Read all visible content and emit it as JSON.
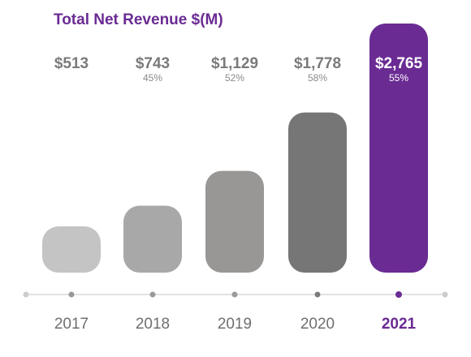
{
  "title": "Total Net Revenue $(M)",
  "colors": {
    "accent": "#6a2b93",
    "bar_greys": [
      "#c4c4c4",
      "#a8a8a8",
      "#999796",
      "#767676"
    ],
    "value_text_grey": "#7a7a7a",
    "growth_text_grey": "#8a8a8a",
    "axis_line": "#d9d9d9",
    "axis_dot_end": "#cccccc",
    "axis_dot_mid": "#999999",
    "axis_dot_dark": "#7a7a7a"
  },
  "chart_data": {
    "type": "bar",
    "title": "Total Net Revenue $(M)",
    "categories": [
      "2017",
      "2018",
      "2019",
      "2020",
      "2021"
    ],
    "values": [
      513,
      743,
      1129,
      1778,
      2765
    ],
    "value_labels": [
      "$513",
      "$743",
      "$1,129",
      "$1,778",
      "$2,765"
    ],
    "growth_labels": [
      "",
      "45%",
      "52%",
      "58%",
      "55%"
    ],
    "highlight_category": "2021",
    "ylim": [
      0,
      2765
    ],
    "grid": false,
    "legend": "none"
  }
}
